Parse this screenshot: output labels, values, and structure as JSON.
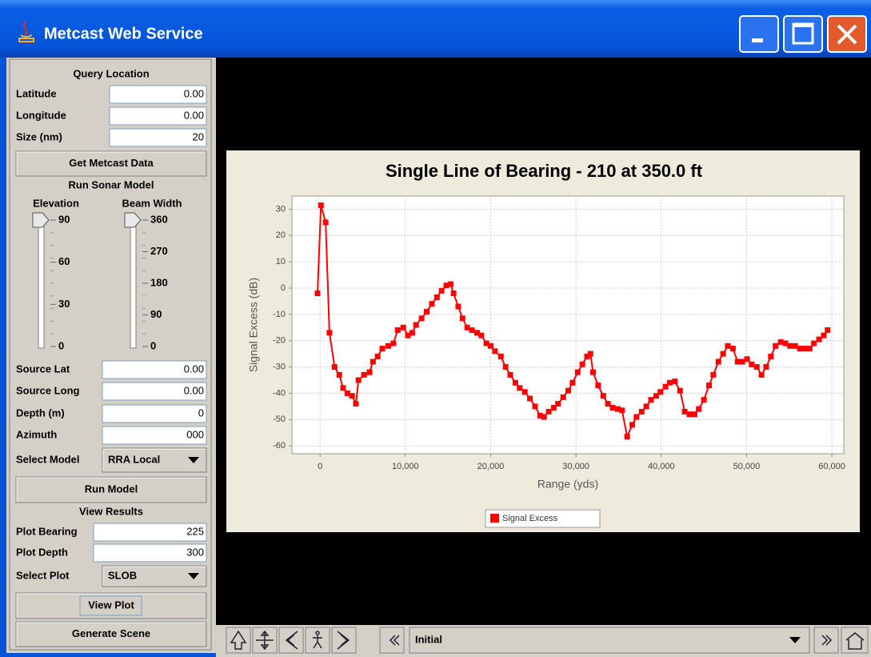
{
  "window": {
    "title": "Metcast Web Service"
  },
  "panel": {
    "query_location": "Query Location",
    "latitude": {
      "label": "Latitude",
      "value": "0.00"
    },
    "longitude": {
      "label": "Longitude",
      "value": "0.00"
    },
    "size": {
      "label": "Size (nm)",
      "value": "20"
    },
    "get_data": "Get Metcast Data",
    "run_sonar_model": "Run Sonar Model",
    "elevation": {
      "label": "Elevation",
      "ticks": [
        90,
        60,
        30,
        0
      ]
    },
    "beam_width": {
      "label": "Beam Width",
      "ticks": [
        360,
        270,
        180,
        90,
        0
      ]
    },
    "source_lat": {
      "label": "Source Lat",
      "value": "0.00"
    },
    "source_long": {
      "label": "Source Long",
      "value": "0.00"
    },
    "depth": {
      "label": "Depth (m)",
      "value": "0"
    },
    "azimuth": {
      "label": "Azimuth",
      "value": "000"
    },
    "select_model": {
      "label": "Select Model",
      "value": "RRA Local"
    },
    "run_model": "Run Model",
    "view_results": "View Results",
    "plot_bearing": {
      "label": "Plot Bearing",
      "value": "225"
    },
    "plot_depth": {
      "label": "Plot Depth",
      "value": "300"
    },
    "select_plot": {
      "label": "Select Plot",
      "value": "SLOB"
    },
    "view_plot": "View Plot",
    "generate_scene": "Generate Scene"
  },
  "toolbar": {
    "view": "Initial"
  },
  "chart_data": {
    "type": "line",
    "title": "Single Line of Bearing - 210 at 350.0 ft",
    "x_label": "Range (yds)",
    "y_label": "Signal Excess (dB)",
    "x": [
      -300,
      100,
      650,
      1100,
      1700,
      2250,
      2700,
      3200,
      3750,
      4200,
      4500,
      5150,
      5800,
      6200,
      6750,
      7300,
      8000,
      8600,
      9100,
      9750,
      10300,
      10800,
      11250,
      11900,
      12500,
      13100,
      13700,
      14250,
      14800,
      15300,
      15650,
      16200,
      16700,
      17250,
      17800,
      18400,
      18900,
      19500,
      20000,
      20500,
      21200,
      21750,
      22300,
      22900,
      23400,
      24000,
      24600,
      25200,
      25800,
      26250,
      26800,
      27400,
      27900,
      28500,
      29100,
      29600,
      30200,
      30750,
      31300,
      31700,
      32000,
      32600,
      33200,
      33750,
      34300,
      34900,
      35400,
      36000,
      36600,
      37100,
      37700,
      38250,
      38800,
      39400,
      39900,
      40500,
      41000,
      41600,
      42200,
      42750,
      43300,
      43900,
      44400,
      45000,
      45600,
      46100,
      46700,
      47250,
      47800,
      48400,
      48950,
      49500,
      50050,
      50600,
      51200,
      51750,
      52300,
      52850,
      53400,
      54000,
      54550,
      55100,
      55700,
      56250,
      56800,
      57400,
      57900,
      58500,
      59050,
      59500
    ],
    "series": [
      {
        "name": "Signal Excess",
        "color": "#ff0000",
        "values": [
          -2,
          31.5,
          25,
          -17,
          -30,
          -33,
          -38,
          -40,
          -41,
          -44,
          -35,
          -33,
          -32,
          -28,
          -26,
          -23,
          -22,
          -21,
          -16,
          -15,
          -18,
          -17,
          -14,
          -11.5,
          -9,
          -6,
          -3.5,
          -1,
          1,
          1.5,
          -2,
          -7,
          -11.5,
          -15,
          -16,
          -17,
          -18,
          -21,
          -22,
          -24,
          -26,
          -30,
          -33,
          -36,
          -38,
          -39.5,
          -42,
          -45,
          -48.5,
          -49,
          -47,
          -45.5,
          -44,
          -41.5,
          -39,
          -36,
          -32,
          -29,
          -26,
          -25,
          -32,
          -37,
          -41,
          -44,
          -45.5,
          -46,
          -46.5,
          -56.5,
          -52,
          -49,
          -47,
          -45,
          -42.5,
          -41,
          -39.5,
          -37.5,
          -36,
          -35.5,
          -39,
          -47,
          -48,
          -48,
          -46,
          -42.5,
          -37,
          -33,
          -28,
          -25,
          -22,
          -23,
          -28,
          -28,
          -27,
          -29,
          -30,
          -33,
          -30,
          -26,
          -22,
          -20.5,
          -21,
          -22,
          -22,
          -23,
          -23,
          -23,
          -21,
          -19.5,
          -18,
          -16
        ]
      }
    ],
    "xlim": [
      -3300,
      61400
    ],
    "ylim": [
      -63,
      35
    ],
    "xticks": [
      {
        "value": 0,
        "label": "0"
      },
      {
        "value": 10000,
        "label": "10,000"
      },
      {
        "value": 20000,
        "label": "20,000"
      },
      {
        "value": 30000,
        "label": "30,000"
      },
      {
        "value": 40000,
        "label": "40,000"
      },
      {
        "value": 50000,
        "label": "50,000"
      },
      {
        "value": 60000,
        "label": "60,000"
      }
    ],
    "yticks": [
      30,
      20,
      10,
      0,
      -10,
      -20,
      -30,
      -40,
      -50,
      -60
    ],
    "grid": true,
    "legend": "bottom"
  }
}
